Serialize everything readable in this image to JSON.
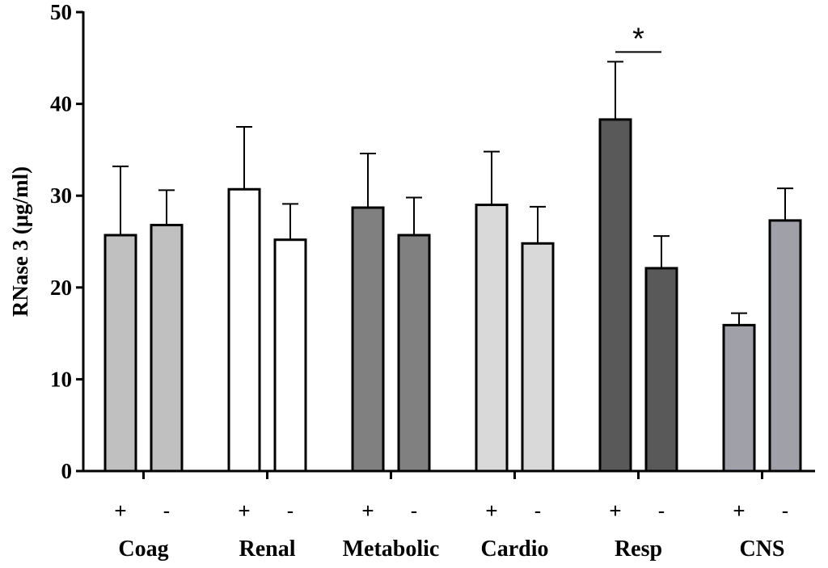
{
  "chart_data": {
    "type": "bar",
    "title": "",
    "xlabel": "",
    "ylabel": "RNase 3 (μg/ml)",
    "ylim": [
      0,
      50
    ],
    "yticks": [
      0,
      10,
      20,
      30,
      40,
      50
    ],
    "grid": false,
    "legend": "none",
    "groups": [
      {
        "name": "Coag",
        "color": "#c0c0c0",
        "bars": [
          {
            "sign": "+",
            "value": 25.7,
            "error": 7.5
          },
          {
            "sign": "-",
            "value": 26.8,
            "error": 3.8
          }
        ]
      },
      {
        "name": "Renal",
        "color": "#ffffff",
        "bars": [
          {
            "sign": "+",
            "value": 30.7,
            "error": 6.8
          },
          {
            "sign": "-",
            "value": 25.2,
            "error": 3.9
          }
        ]
      },
      {
        "name": "Metabolic",
        "color": "#808080",
        "bars": [
          {
            "sign": "+",
            "value": 28.7,
            "error": 5.9
          },
          {
            "sign": "-",
            "value": 25.7,
            "error": 4.1
          }
        ]
      },
      {
        "name": "Cardio",
        "color": "#d9d9d9",
        "bars": [
          {
            "sign": "+",
            "value": 29.0,
            "error": 5.8
          },
          {
            "sign": "-",
            "value": 24.8,
            "error": 4.0
          }
        ]
      },
      {
        "name": "Resp",
        "color": "#595959",
        "bars": [
          {
            "sign": "+",
            "value": 38.3,
            "error": 6.3
          },
          {
            "sign": "-",
            "value": 22.1,
            "error": 3.5
          }
        ]
      },
      {
        "name": "CNS",
        "color": "#a0a0a8",
        "bars": [
          {
            "sign": "+",
            "value": 15.9,
            "error": 1.3
          },
          {
            "sign": "-",
            "value": 27.3,
            "error": 3.5
          }
        ]
      }
    ],
    "annotations": [
      {
        "text": "*",
        "group": "Resp",
        "meaning": "significant difference between + and -"
      }
    ]
  }
}
